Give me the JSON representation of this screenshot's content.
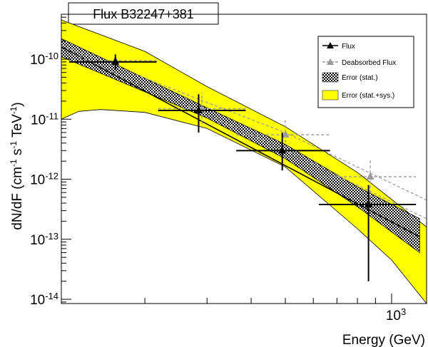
{
  "chart_data": {
    "type": "scatter",
    "title": "Flux B32247+381",
    "xlabel": "Energy (GeV)",
    "ylabel": "dN/dF (cm-1 s-1 TeV-1)",
    "xscale": "log",
    "yscale": "log",
    "xlim": [
      116,
      1256
    ],
    "ylim": [
      8.5e-15,
      5.6e-10
    ],
    "x_tick_labels": [
      {
        "value": 1000,
        "label": "10",
        "sup": "3"
      }
    ],
    "y_tick_labels": [
      {
        "value": 1e-10,
        "label": "10",
        "sup": "-10"
      },
      {
        "value": 1e-11,
        "label": "10",
        "sup": "-11"
      },
      {
        "value": 1e-12,
        "label": "10",
        "sup": "-12"
      },
      {
        "value": 1e-13,
        "label": "10",
        "sup": "-13"
      },
      {
        "value": 1e-14,
        "label": "10",
        "sup": "-14"
      }
    ],
    "grid": false,
    "legend_position": "top-right",
    "series": [
      {
        "name": "Flux",
        "color": "#000000",
        "marker": "triangle",
        "points": [
          {
            "x": 165,
            "y": 9e-11,
            "xerr": [
              122,
              216
            ],
            "yerr": [
              6.6e-11,
              1.2e-10
            ]
          },
          {
            "x": 284,
            "y": 1.4e-11,
            "xerr": [
              218,
              386
            ],
            "yerr": [
              6e-12,
              2.6e-11
            ]
          },
          {
            "x": 490,
            "y": 3e-12,
            "xerr": [
              363,
              669
            ],
            "yerr": [
              1.4e-12,
              6e-12
            ]
          },
          {
            "x": 860,
            "y": 3.8e-13,
            "xerr": [
              622,
              1172
            ],
            "yerr": [
              2e-14,
              8e-13
            ]
          }
        ]
      },
      {
        "name": "Deabsorbed Flux",
        "color": "#999999",
        "marker": "triangle",
        "line_style": "dashed",
        "points": [
          {
            "x": 165,
            "y": 9.5e-11,
            "xerr": [
              122,
              216
            ],
            "yerr": [
              7e-11,
              1.25e-10
            ]
          },
          {
            "x": 290,
            "y": 1.5e-11,
            "xerr": [
              218,
              386
            ],
            "yerr": [
              7e-12,
              2.8e-11
            ]
          },
          {
            "x": 500,
            "y": 5.5e-12,
            "xerr": [
              363,
              669
            ],
            "yerr": [
              2.3e-12,
              9.5e-12
            ]
          },
          {
            "x": 870,
            "y": 1.1e-12,
            "xerr": [
              622,
              1172
            ],
            "yerr": [
              4e-13,
              2.2e-12
            ]
          }
        ]
      }
    ],
    "bands": [
      {
        "name": "Error (stat.+sys.)",
        "fill": "#ffff00",
        "upper": [
          [
            116,
            4.5e-10
          ],
          [
            200,
            1.35e-10
          ],
          [
            300,
            3.5e-11
          ],
          [
            500,
            7.5e-12
          ],
          [
            800,
            1.3e-12
          ],
          [
            1256,
            1.6e-13
          ]
        ],
        "lower": [
          [
            116,
            1e-11
          ],
          [
            130,
            1.35e-11
          ],
          [
            150,
            1.45e-11
          ],
          [
            200,
            1.3e-11
          ],
          [
            300,
            7e-12
          ],
          [
            500,
            1.6e-12
          ],
          [
            800,
            1.5e-13
          ],
          [
            1000,
            4.5e-14
          ],
          [
            1256,
            8.5e-15
          ]
        ]
      },
      {
        "name": "Error (stat.)",
        "fill": "checker",
        "upper": [
          [
            116,
            2.2e-10
          ],
          [
            300,
            1.55e-11
          ],
          [
            500,
            3.8e-12
          ],
          [
            800,
            7.5e-13
          ],
          [
            1200,
            2.2e-13
          ]
        ],
        "lower": [
          [
            116,
            1.1e-10
          ],
          [
            300,
            1.05e-11
          ],
          [
            500,
            2.2e-12
          ],
          [
            800,
            3.5e-13
          ],
          [
            1200,
            6e-14
          ]
        ]
      }
    ],
    "fit_lines": [
      {
        "series": "Flux",
        "points": [
          [
            116,
            1.6e-10
          ],
          [
            1200,
            1.1e-13
          ]
        ],
        "style": "solid"
      },
      {
        "series": "Deabsorbed Flux",
        "points": [
          [
            116,
            1.7e-10
          ],
          [
            300,
            1.9e-11
          ],
          [
            500,
            6e-12
          ],
          [
            1256,
            4.5e-13
          ]
        ],
        "style": "dashed"
      },
      {
        "series": "Deabsorbed Flux",
        "points": [
          [
            116,
            1.5e-10
          ],
          [
            300,
            1.2e-11
          ],
          [
            500,
            3e-12
          ],
          [
            1256,
            2.2e-13
          ]
        ],
        "style": "dashed"
      }
    ]
  }
}
